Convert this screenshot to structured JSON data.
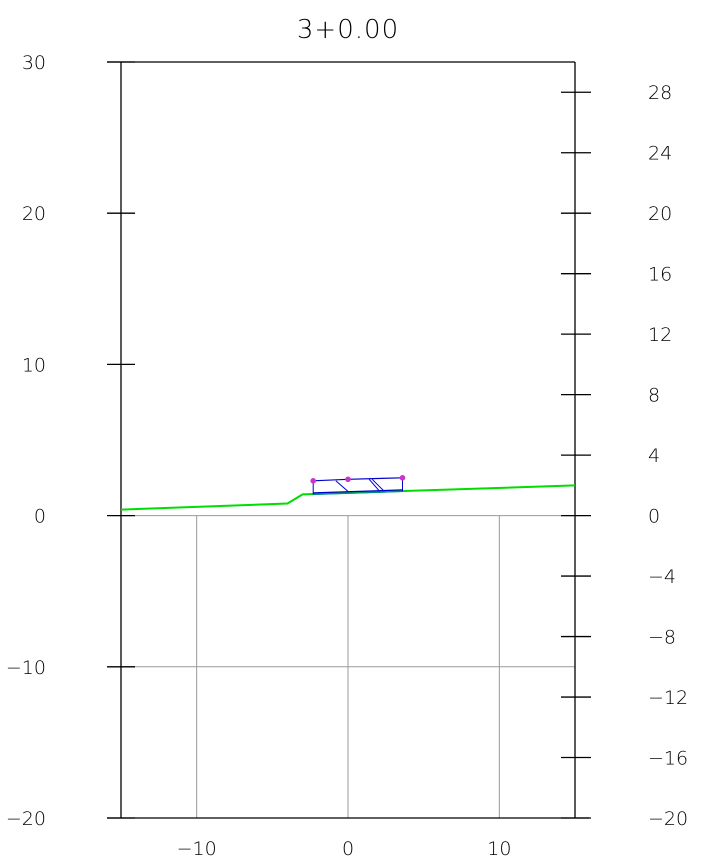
{
  "chart_data": {
    "type": "line",
    "title": "3+0.00",
    "xlabel": "",
    "ylabel": "",
    "xlim": [
      -15,
      15
    ],
    "ylim": [
      -20,
      30
    ],
    "y2lim": [
      -20,
      30
    ],
    "x_ticks": [
      -10,
      0,
      10
    ],
    "x_tick_labels": [
      "−10",
      "0",
      "10"
    ],
    "y_ticks": [
      -20,
      -10,
      0,
      10,
      20,
      30
    ],
    "y_tick_labels": [
      "−20",
      "−10",
      "0",
      "10",
      "20",
      "30"
    ],
    "y2_ticks": [
      -20,
      -16,
      -12,
      -8,
      -4,
      0,
      4,
      8,
      12,
      16,
      20,
      24,
      28
    ],
    "y2_tick_labels": [
      "−20",
      "−16",
      "−12",
      "−8",
      "−4",
      "0",
      "4",
      "8",
      "12",
      "16",
      "20",
      "24",
      "28"
    ],
    "grid_x": [
      -10,
      0,
      10
    ],
    "grid_y": [
      -10,
      0
    ],
    "series": [
      {
        "kind": "ground",
        "color": "#00dd00",
        "points": [
          [
            -15,
            0.4
          ],
          [
            -4,
            0.8
          ],
          [
            -3,
            1.4
          ],
          [
            15,
            2.0
          ]
        ]
      },
      {
        "kind": "road-surface",
        "color": "#0000cc",
        "points": [
          [
            -2.3,
            2.3
          ],
          [
            0,
            2.4
          ],
          [
            3.6,
            2.5
          ]
        ]
      },
      {
        "kind": "road-base",
        "color": "#0000cc",
        "points": [
          [
            -2.3,
            1.5
          ],
          [
            3.6,
            1.7
          ]
        ]
      },
      {
        "kind": "road-subgrade",
        "color": "#008888",
        "points": [
          [
            -2.3,
            1.4
          ],
          [
            3.6,
            1.6
          ]
        ]
      },
      {
        "kind": "road-outline",
        "color": "#0000cc",
        "segments": [
          [
            [
              -2.3,
              2.3
            ],
            [
              -2.3,
              1.4
            ]
          ],
          [
            [
              3.6,
              2.5
            ],
            [
              3.6,
              1.6
            ]
          ],
          [
            [
              -0.8,
              2.3
            ],
            [
              0.0,
              1.6
            ]
          ],
          [
            [
              1.4,
              2.4
            ],
            [
              2.1,
              1.6
            ]
          ],
          [
            [
              1.6,
              2.4
            ],
            [
              2.4,
              1.6
            ]
          ]
        ]
      },
      {
        "kind": "marker-points",
        "color": "#cc33cc",
        "points": [
          [
            -2.3,
            2.3
          ],
          [
            0,
            2.4
          ],
          [
            3.6,
            2.5
          ]
        ]
      }
    ]
  }
}
